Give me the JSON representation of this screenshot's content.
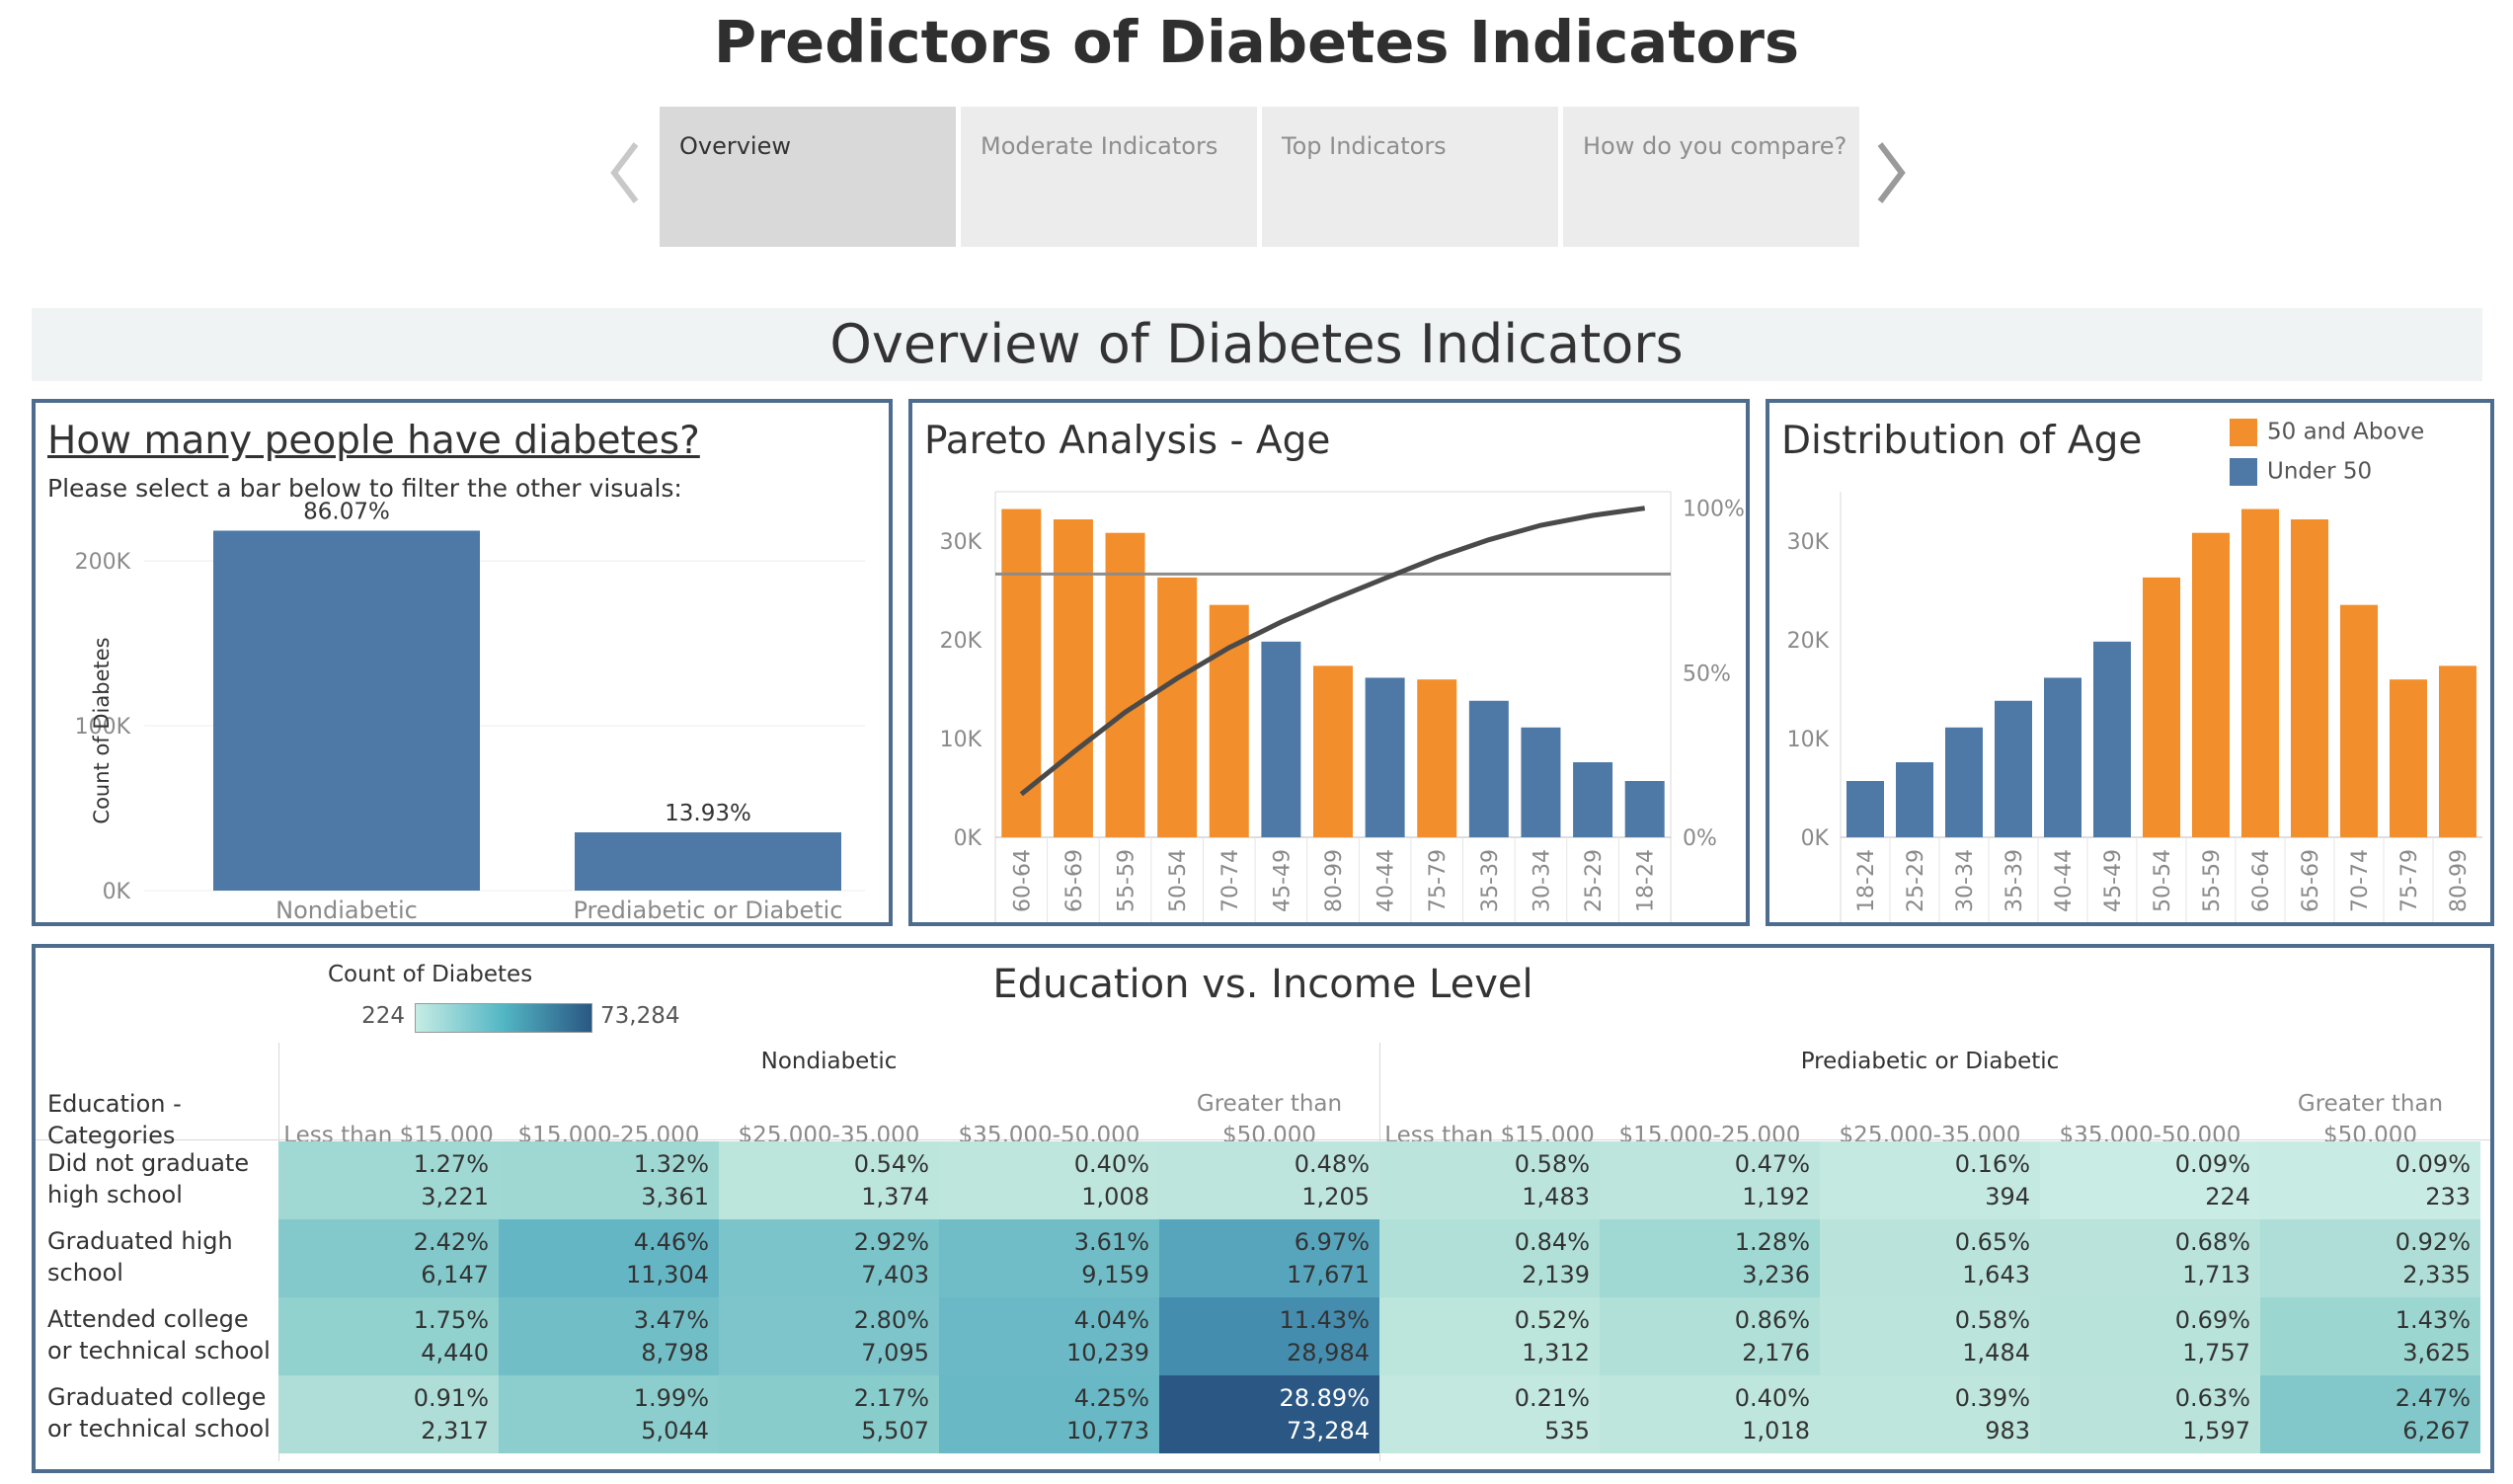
{
  "story": {
    "title": "Predictors of Diabetes Indicators",
    "tabs": [
      "Overview",
      "Moderate Indicators",
      "Top Indicators",
      "How do you compare?"
    ],
    "active_tab": "Overview"
  },
  "banner": {
    "title": "Overview of Diabetes Indicators"
  },
  "panel_diabetes": {
    "title": "How many people have diabetes?",
    "instruction": "Please select a bar below to filter the other visuals:"
  },
  "panel_pareto": {
    "title": "Pareto Analysis - Age"
  },
  "panel_distribution": {
    "title": "Distribution of Age"
  },
  "panel_heat": {
    "title": "Education vs. Income Level",
    "legend_title": "Count of Diabetes",
    "legend_min": "224",
    "legend_max": "73,284",
    "row_header": "Education - Categories"
  },
  "colors": {
    "blue": "#4e79a7",
    "orange": "#f28e2b",
    "border": "#4e6d8e",
    "heat_low": "#b9e3da",
    "heat_high": "#2a5783"
  },
  "chart_data": [
    {
      "type": "bar",
      "id": "diabetes-count",
      "categories": [
        "Nondiabetic",
        "Prediabetic or Diabetic"
      ],
      "values": [
        218334,
        35346
      ],
      "data_labels": [
        "86.07%",
        "13.93%"
      ],
      "ylabel": "Count of Diabetes",
      "yticks": [
        "0K",
        "100K",
        "200K"
      ],
      "ylim": [
        0,
        230000
      ]
    },
    {
      "type": "bar",
      "id": "pareto-age",
      "categories": [
        "60-64",
        "65-69",
        "55-59",
        "50-54",
        "70-74",
        "45-49",
        "80-99",
        "40-44",
        "75-79",
        "35-39",
        "30-34",
        "25-29",
        "18-24"
      ],
      "values": [
        33244,
        32194,
        30832,
        26314,
        23533,
        19819,
        17363,
        16157,
        15980,
        13823,
        11123,
        7598,
        5700
      ],
      "groups": [
        "50 and Above",
        "50 and Above",
        "50 and Above",
        "50 and Above",
        "50 and Above",
        "Under 50",
        "50 and Above",
        "Under 50",
        "50 and Above",
        "Under 50",
        "Under 50",
        "Under 50",
        "Under 50"
      ],
      "cumulative_percent": [
        13.1,
        25.8,
        38.0,
        48.3,
        57.6,
        65.4,
        72.3,
        78.7,
        85.0,
        90.4,
        94.8,
        97.8,
        100.0
      ],
      "reference_line_percent": 80,
      "yticks": [
        "0K",
        "10K",
        "20K",
        "30K"
      ],
      "y2ticks": [
        "0%",
        "50%",
        "100%"
      ],
      "ylim": [
        0,
        35000
      ],
      "y2lim": [
        0,
        105
      ]
    },
    {
      "type": "bar",
      "id": "distribution-age",
      "categories": [
        "18-24",
        "25-29",
        "30-34",
        "35-39",
        "40-44",
        "45-49",
        "50-54",
        "55-59",
        "60-64",
        "65-69",
        "70-74",
        "75-79",
        "80-99"
      ],
      "values": [
        5700,
        7598,
        11123,
        13823,
        16157,
        19819,
        26314,
        30832,
        33244,
        32194,
        23533,
        15980,
        17363
      ],
      "groups": [
        "Under 50",
        "Under 50",
        "Under 50",
        "Under 50",
        "Under 50",
        "Under 50",
        "50 and Above",
        "50 and Above",
        "50 and Above",
        "50 and Above",
        "50 and Above",
        "50 and Above",
        "50 and Above"
      ],
      "legend": [
        "50 and Above",
        "Under 50"
      ],
      "yticks": [
        "0K",
        "10K",
        "20K",
        "30K"
      ],
      "ylim": [
        0,
        35000
      ]
    },
    {
      "type": "heatmap",
      "id": "education-income",
      "groups": [
        "Nondiabetic",
        "Prediabetic or Diabetic"
      ],
      "columns": [
        "Less than $15,000",
        "$15,000-25,000",
        "$25,000-35,000",
        "$35,000-50,000",
        "Greater than $50,000"
      ],
      "rows": [
        "Did not graduate high school",
        "Graduated high school",
        "Attended college or technical school",
        "Graduated college or technical school"
      ],
      "percent": [
        [
          [
            "1.27%",
            "1.32%",
            "0.54%",
            "0.40%",
            "0.48%"
          ],
          [
            "0.58%",
            "0.47%",
            "0.16%",
            "0.09%",
            "0.09%"
          ]
        ],
        [
          [
            "2.42%",
            "4.46%",
            "2.92%",
            "3.61%",
            "6.97%"
          ],
          [
            "0.84%",
            "1.28%",
            "0.65%",
            "0.68%",
            "0.92%"
          ]
        ],
        [
          [
            "1.75%",
            "3.47%",
            "2.80%",
            "4.04%",
            "11.43%"
          ],
          [
            "0.52%",
            "0.86%",
            "0.58%",
            "0.69%",
            "1.43%"
          ]
        ],
        [
          [
            "0.91%",
            "1.99%",
            "2.17%",
            "4.25%",
            "28.89%"
          ],
          [
            "0.21%",
            "0.40%",
            "0.39%",
            "0.63%",
            "2.47%"
          ]
        ]
      ],
      "counts": [
        [
          [
            3221,
            3361,
            1374,
            1008,
            1205
          ],
          [
            1483,
            1192,
            394,
            224,
            233
          ]
        ],
        [
          [
            6147,
            11304,
            7403,
            9159,
            17671
          ],
          [
            2139,
            3236,
            1643,
            1713,
            2335
          ]
        ],
        [
          [
            4440,
            8798,
            7095,
            10239,
            28984
          ],
          [
            1312,
            2176,
            1484,
            1757,
            3625
          ]
        ],
        [
          [
            2317,
            5044,
            5507,
            10773,
            73284
          ],
          [
            535,
            1018,
            983,
            1597,
            6267
          ]
        ]
      ],
      "count_range": [
        224,
        73284
      ]
    }
  ]
}
